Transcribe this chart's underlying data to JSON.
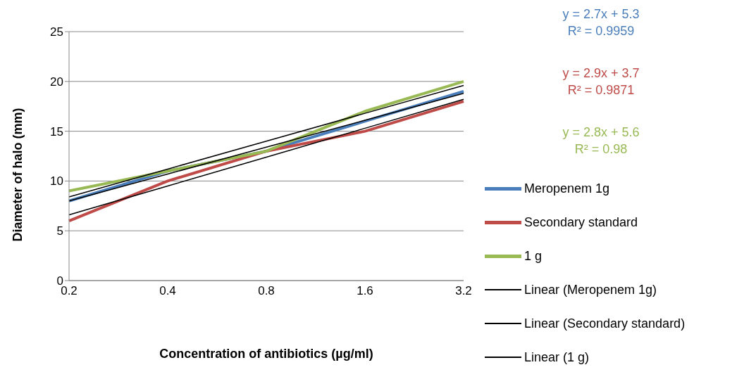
{
  "chart_data": {
    "type": "line",
    "xlabel": "Concentration of antibiotics (µg/ml)",
    "ylabel": "Diameter of halo (mm)",
    "categories": [
      "0.2",
      "0.4",
      "0.8",
      "1.6",
      "3.2"
    ],
    "series": [
      {
        "name": "Meropenem 1g",
        "color": "#4a7ebb",
        "values": [
          8,
          11,
          13,
          16,
          19
        ]
      },
      {
        "name": "Secondary standard",
        "color": "#be4b48",
        "values": [
          6,
          10,
          13,
          15,
          18
        ]
      },
      {
        "name": "1 g",
        "color": "#98b954",
        "values": [
          9,
          11,
          13,
          17,
          20
        ]
      },
      {
        "name": "Linear (Meropenem 1g)",
        "color": "#000000",
        "x": [
          "0.2",
          "0.4",
          "0.8",
          "1.6",
          "3.2"
        ],
        "values": [
          8,
          10.7,
          13.4,
          16.1,
          18.8
        ]
      },
      {
        "name": "Linear (Secondary standard)",
        "color": "#000000",
        "x": [
          "0.2",
          "0.4",
          "0.8",
          "1.6",
          "3.2"
        ],
        "values": [
          6.6,
          9.5,
          12.4,
          15.3,
          18.2
        ]
      },
      {
        "name": "Linear (1 g)",
        "color": "#000000",
        "x": [
          "0.2",
          "0.4",
          "0.8",
          "1.6",
          "3.2"
        ],
        "values": [
          8.4,
          11.2,
          14,
          16.8,
          19.6
        ]
      }
    ],
    "annotations": [
      "y = 2.7x + 5.3\nR² = 0.9959",
      "y = 2.9x + 3.7\nR² = 0.9871",
      "y = 2.8x + 5.6\nR² = 0.98"
    ],
    "ylim": [
      0,
      25
    ],
    "yticks": [
      0,
      5,
      10,
      15,
      20,
      25
    ],
    "grid": "y",
    "legend": "right",
    "marker": "none",
    "line_style": "solid"
  }
}
